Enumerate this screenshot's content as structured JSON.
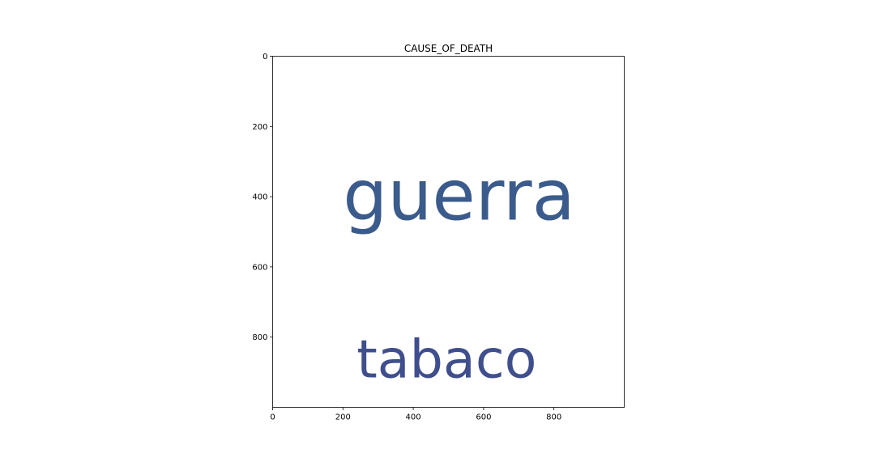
{
  "chart_data": {
    "type": "wordcloud",
    "title": "CAUSE_OF_DEATH",
    "xlabel": "",
    "ylabel": "",
    "xlim": [
      0,
      1000
    ],
    "ylim": [
      1000,
      0
    ],
    "x_ticks": [
      0,
      200,
      400,
      600,
      800
    ],
    "y_ticks": [
      0,
      200,
      400,
      600,
      800
    ],
    "grid": false,
    "background": "#ffffff",
    "words": [
      {
        "text": "guerra",
        "x": 530,
        "y": 465,
        "font_size": 200,
        "color": "#3b5b8c"
      },
      {
        "text": "tabaco",
        "x": 495,
        "y": 915,
        "font_size": 150,
        "color": "#3f4e8c"
      }
    ]
  }
}
